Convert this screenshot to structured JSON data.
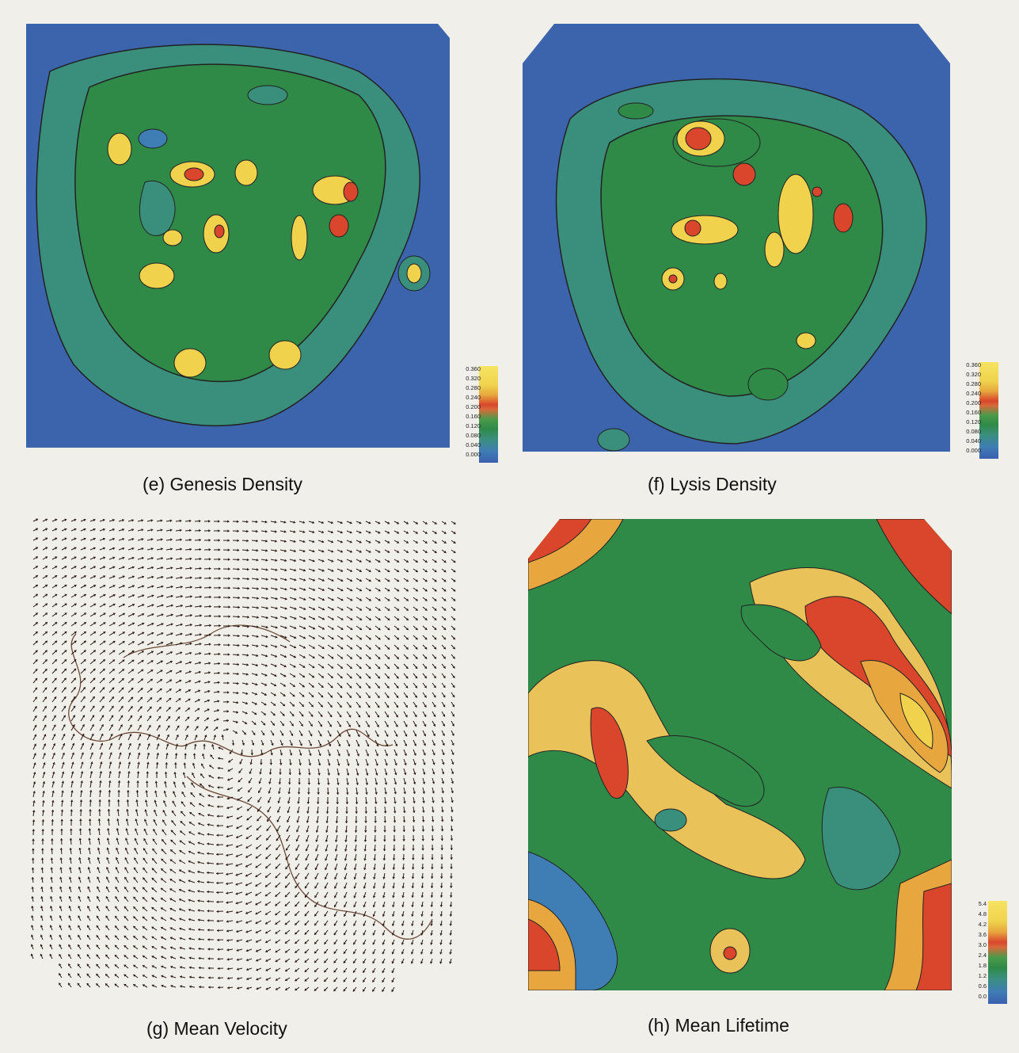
{
  "panels": [
    {
      "id": "e",
      "caption": "(e) Genesis Density",
      "legend": [
        "0.360",
        "0.320",
        "0.280",
        "0.240",
        "0.200",
        "0.160",
        "0.120",
        "0.080",
        "0.040",
        "0.000"
      ]
    },
    {
      "id": "f",
      "caption": "(f) Lysis Density",
      "legend": [
        "0.360",
        "0.320",
        "0.280",
        "0.240",
        "0.200",
        "0.160",
        "0.120",
        "0.080",
        "0.040",
        "0.000"
      ]
    },
    {
      "id": "g",
      "caption": "(g) Mean Velocity",
      "legend": []
    },
    {
      "id": "h",
      "caption": "(h) Mean Lifetime",
      "legend": [
        "5.4",
        "4.8",
        "4.2",
        "3.6",
        "3.0",
        "2.4",
        "1.8",
        "1.2",
        "0.6",
        "0.0"
      ]
    }
  ],
  "colors": {
    "scale": [
      "#f7e463",
      "#efd24c",
      "#e7a73e",
      "#d9462c",
      "#d66a3a",
      "#4a9a4a",
      "#2f8a48",
      "#3a8f7c",
      "#3f7db5",
      "#3a5fae"
    ],
    "ocean": "#3d68b0",
    "land": "#2f8a48"
  }
}
